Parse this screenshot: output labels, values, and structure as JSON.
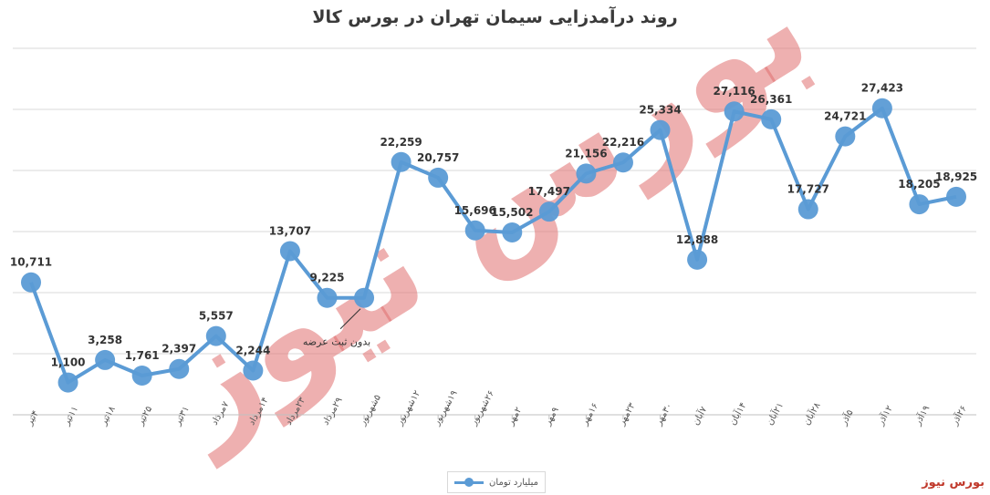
{
  "chart_data": {
    "type": "line",
    "title": "روند درآمدزایی سیمان تهران در بورس کالا",
    "categories": [
      "۴تیر",
      "۱۱تیر",
      "۱۸تیر",
      "۲۵تیر",
      "۳۱تیر",
      "۷مرداد",
      "۱۴مرداد",
      "۲۳مرداد",
      "۲۹مرداد",
      "۵شهریور",
      "۱۲شهریور",
      "۱۹شهریور",
      "۲۶شهریور",
      "۲مهر",
      "۹مهر",
      "۱۶مهر",
      "۲۳مهر",
      "۳۰مهر",
      "۷آبان",
      "۱۴آبان",
      "۲۱آبان",
      "۲۸آبان",
      "۵آذر",
      "۱۲آذر",
      "۱۹آذر",
      "۲۶آذر"
    ],
    "series": [
      {
        "name": "میلیارد تومان",
        "values": [
          10711,
          1100,
          3258,
          1761,
          2397,
          5557,
          2244,
          13707,
          9225,
          9225,
          22259,
          20757,
          15696,
          15502,
          17497,
          21156,
          22216,
          25334,
          12888,
          27116,
          26361,
          17727,
          24721,
          27423,
          18205,
          18925
        ],
        "labels": [
          "10,711",
          "1,100",
          "3,258",
          "1,761",
          "2,397",
          "5,557",
          "2,244",
          "13,707",
          "9,225",
          "",
          "22,259",
          "20,757",
          "15,696",
          "15,502",
          "17,497",
          "21,156",
          "22,216",
          "25,334",
          "12,888",
          "27,116",
          "26,361",
          "17,727",
          "24,721",
          "27,423",
          "18,205",
          "18,925"
        ]
      }
    ],
    "annotation": "بدون ثبت عرضه",
    "ylim": [
      -2000,
      33000
    ],
    "grid": true,
    "legend_position": "bottom"
  },
  "legend": {
    "label": "میلیارد تومان"
  },
  "brand": {
    "text": "بورس نیوز",
    "watermark_text": "بورس نیوز"
  },
  "colors": {
    "line": "#5b9bd5",
    "watermark": "#e07070",
    "grid": "#d9d9d9",
    "brand": "#c0392b"
  }
}
